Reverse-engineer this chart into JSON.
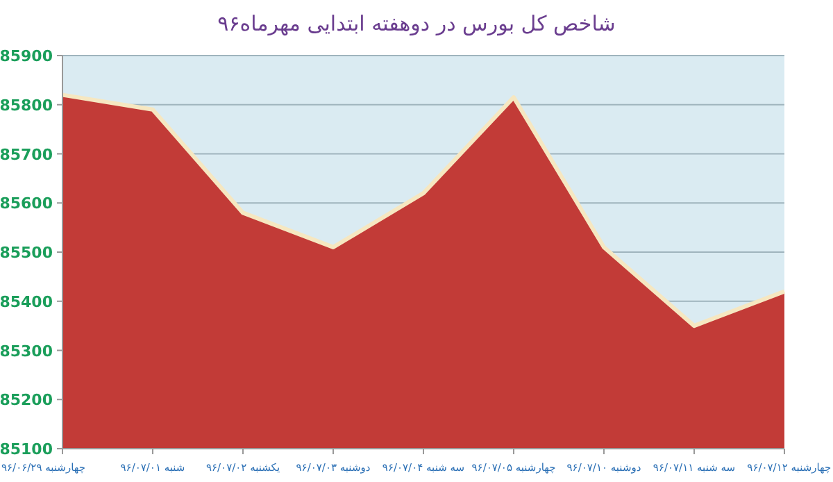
{
  "chart_data": {
    "type": "area",
    "title": "شاخص کل بورس در دوهفته ابتدایی مهرماه۹۶",
    "categories": [
      "چهارشنبه ۹۶/۰۶/۲۹",
      "شنبه ۹۶/۰۷/۰۱",
      "یکشنبه ۹۶/۰۷/۰۲",
      "دوشنبه ۹۶/۰۷/۰۳",
      "سه شنبه ۹۶/۰۷/۰۴",
      "چهارشنبه ۹۶/۰۷/۰۵",
      "دوشنبه ۹۶/۰۷/۱۰",
      "سه شنبه ۹۶/۰۷/۱۱",
      "چهارشنبه ۹۶/۰۷/۱۲"
    ],
    "values": [
      85820,
      85790,
      85580,
      85510,
      85620,
      85815,
      85510,
      85350,
      85420
    ],
    "color": "#c23b37",
    "ylim": [
      85100,
      85900
    ],
    "yticks": [
      85100,
      85200,
      85300,
      85400,
      85500,
      85600,
      85700,
      85800,
      85900
    ],
    "grid": "y"
  }
}
